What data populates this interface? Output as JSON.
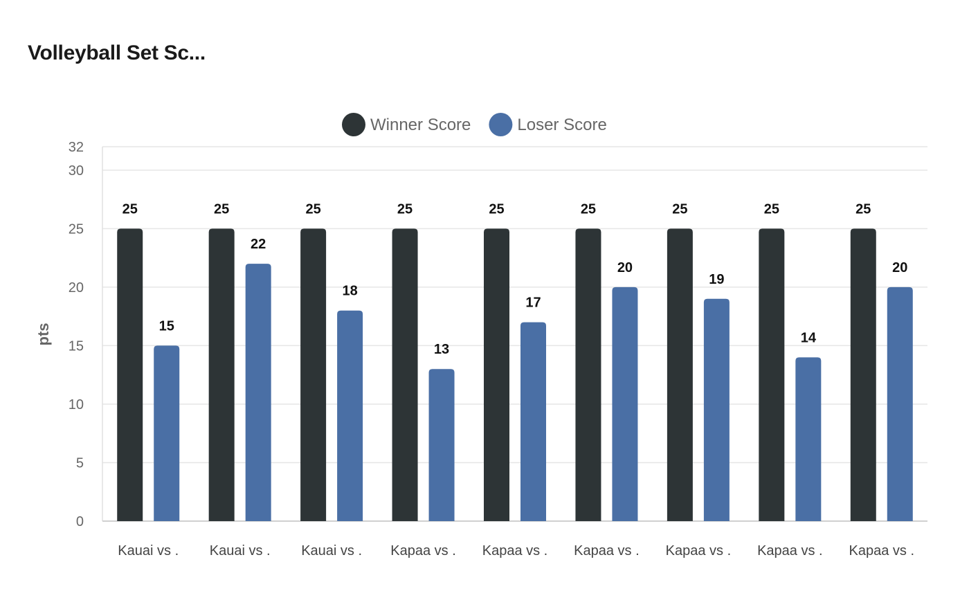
{
  "title": "Volleyball Set Sc...",
  "chart_data": {
    "type": "bar",
    "ylabel": "pts",
    "xlabel": "",
    "ylim": [
      0,
      32
    ],
    "yticks": [
      0,
      5,
      10,
      15,
      20,
      25,
      30,
      32
    ],
    "grid": true,
    "legend_position": "top-center",
    "categories": [
      "Kauai vs .",
      "Kauai vs .",
      "Kauai vs .",
      "Kapaa vs .",
      "Kapaa vs .",
      "Kapaa vs .",
      "Kapaa vs .",
      "Kapaa vs .",
      "Kapaa vs ."
    ],
    "series": [
      {
        "name": "Winner Score",
        "color": "#2d3436",
        "values": [
          25,
          25,
          25,
          25,
          25,
          25,
          25,
          25,
          25
        ]
      },
      {
        "name": "Loser Score",
        "color": "#4a6fa5",
        "values": [
          15,
          22,
          18,
          13,
          17,
          20,
          19,
          14,
          20
        ]
      }
    ]
  }
}
